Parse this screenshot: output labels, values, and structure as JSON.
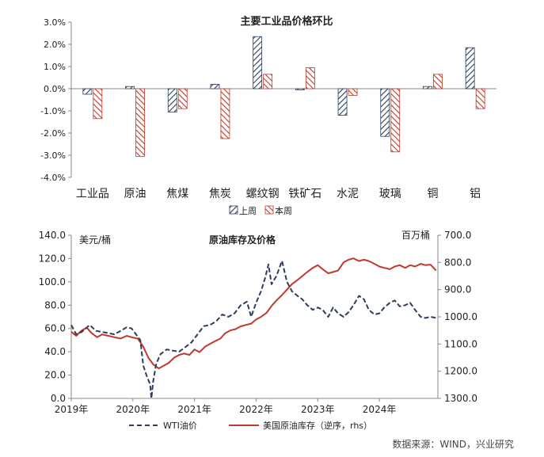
{
  "colors": {
    "last_week": "#2c3e5c",
    "this_week": "#c0392b",
    "wti": "#2c3e5c",
    "inventory": "#c0392b",
    "axis": "#888888"
  },
  "source": "数据来源：WIND，兴业研究",
  "chart_data": [
    {
      "type": "bar",
      "title": "主要工业品价格环比",
      "categories": [
        "工业品",
        "原油",
        "焦煤",
        "焦炭",
        "螺纹钢",
        "铁矿石",
        "水泥",
        "玻璃",
        "铜",
        "铝"
      ],
      "series": [
        {
          "name": "上周",
          "values": [
            -0.25,
            0.1,
            -1.05,
            0.2,
            2.35,
            -0.05,
            -1.2,
            -2.15,
            0.1,
            1.85
          ]
        },
        {
          "name": "本周",
          "values": [
            -1.35,
            -3.05,
            -0.9,
            -2.25,
            0.65,
            0.95,
            -0.3,
            -2.85,
            0.65,
            -0.9
          ]
        }
      ],
      "ylim": [
        -4.0,
        3.0
      ],
      "yticks": [
        "3.0%",
        "2.0%",
        "1.0%",
        "0.0%",
        "-1.0%",
        "-2.0%",
        "-3.0%",
        "-4.0%"
      ],
      "legend_position": "bottom",
      "grid": false
    },
    {
      "type": "line",
      "title": "原油库存及价格",
      "ylabel_left": "美元/桶",
      "ylabel_right": "百万桶",
      "xticks": [
        "2019年",
        "2020年",
        "2021年",
        "2022年",
        "2023年",
        "2024年"
      ],
      "yticks_left": [
        "140.0",
        "120.0",
        "100.0",
        "80.0",
        "60.0",
        "40.0",
        "20.0",
        "0.0"
      ],
      "yticks_right": [
        "700.0",
        "800.0",
        "900.0",
        "1000.0",
        "1100.0",
        "1200.0",
        "1300.0"
      ],
      "ylim_left": [
        0,
        140
      ],
      "ylim_right_reversed": [
        700,
        1300
      ],
      "xlim": [
        2019.0,
        2024.95
      ],
      "legend_position": "bottom",
      "grid": false,
      "series": [
        {
          "name": "WTI油价",
          "axis": "left",
          "style": "dashed",
          "points": [
            [
              2019.0,
              63
            ],
            [
              2019.08,
              55
            ],
            [
              2019.17,
              57
            ],
            [
              2019.3,
              63
            ],
            [
              2019.4,
              58
            ],
            [
              2019.5,
              57
            ],
            [
              2019.6,
              56
            ],
            [
              2019.7,
              55
            ],
            [
              2019.8,
              58
            ],
            [
              2019.9,
              61
            ],
            [
              2019.98,
              60
            ],
            [
              2020.05,
              55
            ],
            [
              2020.12,
              50
            ],
            [
              2020.17,
              28
            ],
            [
              2020.22,
              20
            ],
            [
              2020.28,
              12
            ],
            [
              2020.3,
              0
            ],
            [
              2020.33,
              15
            ],
            [
              2020.38,
              30
            ],
            [
              2020.45,
              38
            ],
            [
              2020.55,
              42
            ],
            [
              2020.65,
              41
            ],
            [
              2020.75,
              40
            ],
            [
              2020.85,
              44
            ],
            [
              2020.95,
              48
            ],
            [
              2021.05,
              55
            ],
            [
              2021.15,
              62
            ],
            [
              2021.25,
              63
            ],
            [
              2021.35,
              66
            ],
            [
              2021.45,
              72
            ],
            [
              2021.55,
              70
            ],
            [
              2021.65,
              73
            ],
            [
              2021.75,
              80
            ],
            [
              2021.85,
              83
            ],
            [
              2021.92,
              70
            ],
            [
              2022.0,
              82
            ],
            [
              2022.08,
              92
            ],
            [
              2022.15,
              104
            ],
            [
              2022.2,
              115
            ],
            [
              2022.25,
              98
            ],
            [
              2022.33,
              105
            ],
            [
              2022.42,
              118
            ],
            [
              2022.5,
              100
            ],
            [
              2022.58,
              92
            ],
            [
              2022.67,
              88
            ],
            [
              2022.75,
              85
            ],
            [
              2022.83,
              80
            ],
            [
              2022.92,
              76
            ],
            [
              2023.0,
              78
            ],
            [
              2023.08,
              76
            ],
            [
              2023.17,
              70
            ],
            [
              2023.25,
              78
            ],
            [
              2023.33,
              73
            ],
            [
              2023.42,
              70
            ],
            [
              2023.5,
              74
            ],
            [
              2023.58,
              80
            ],
            [
              2023.67,
              88
            ],
            [
              2023.75,
              85
            ],
            [
              2023.83,
              76
            ],
            [
              2023.92,
              72
            ],
            [
              2024.0,
              73
            ],
            [
              2024.08,
              78
            ],
            [
              2024.17,
              82
            ],
            [
              2024.25,
              84
            ],
            [
              2024.33,
              79
            ],
            [
              2024.42,
              80
            ],
            [
              2024.5,
              82
            ],
            [
              2024.58,
              76
            ],
            [
              2024.67,
              70
            ],
            [
              2024.75,
              69
            ],
            [
              2024.83,
              70
            ],
            [
              2024.92,
              69
            ]
          ]
        },
        {
          "name": "美国原油库存（逆序，rhs）",
          "axis": "right",
          "style": "solid",
          "points": [
            [
              2019.0,
              1055
            ],
            [
              2019.08,
              1070
            ],
            [
              2019.17,
              1050
            ],
            [
              2019.25,
              1040
            ],
            [
              2019.33,
              1060
            ],
            [
              2019.42,
              1075
            ],
            [
              2019.5,
              1065
            ],
            [
              2019.6,
              1070
            ],
            [
              2019.7,
              1075
            ],
            [
              2019.8,
              1080
            ],
            [
              2019.9,
              1070
            ],
            [
              2019.98,
              1075
            ],
            [
              2020.08,
              1080
            ],
            [
              2020.17,
              1110
            ],
            [
              2020.25,
              1150
            ],
            [
              2020.33,
              1175
            ],
            [
              2020.42,
              1190
            ],
            [
              2020.5,
              1180
            ],
            [
              2020.58,
              1170
            ],
            [
              2020.67,
              1150
            ],
            [
              2020.75,
              1140
            ],
            [
              2020.83,
              1135
            ],
            [
              2020.92,
              1140
            ],
            [
              2021.0,
              1120
            ],
            [
              2021.08,
              1130
            ],
            [
              2021.17,
              1110
            ],
            [
              2021.25,
              1100
            ],
            [
              2021.33,
              1090
            ],
            [
              2021.42,
              1080
            ],
            [
              2021.5,
              1060
            ],
            [
              2021.58,
              1050
            ],
            [
              2021.67,
              1045
            ],
            [
              2021.75,
              1035
            ],
            [
              2021.83,
              1030
            ],
            [
              2021.92,
              1025
            ],
            [
              2022.0,
              1010
            ],
            [
              2022.08,
              1000
            ],
            [
              2022.17,
              985
            ],
            [
              2022.25,
              960
            ],
            [
              2022.33,
              940
            ],
            [
              2022.42,
              920
            ],
            [
              2022.5,
              900
            ],
            [
              2022.58,
              880
            ],
            [
              2022.67,
              865
            ],
            [
              2022.75,
              850
            ],
            [
              2022.83,
              835
            ],
            [
              2022.92,
              820
            ],
            [
              2023.0,
              810
            ],
            [
              2023.08,
              825
            ],
            [
              2023.17,
              840
            ],
            [
              2023.25,
              835
            ],
            [
              2023.33,
              830
            ],
            [
              2023.42,
              800
            ],
            [
              2023.5,
              790
            ],
            [
              2023.58,
              785
            ],
            [
              2023.67,
              795
            ],
            [
              2023.75,
              790
            ],
            [
              2023.83,
              795
            ],
            [
              2023.92,
              805
            ],
            [
              2024.0,
              815
            ],
            [
              2024.08,
              820
            ],
            [
              2024.17,
              825
            ],
            [
              2024.25,
              815
            ],
            [
              2024.33,
              810
            ],
            [
              2024.42,
              820
            ],
            [
              2024.5,
              810
            ],
            [
              2024.58,
              815
            ],
            [
              2024.67,
              805
            ],
            [
              2024.75,
              810
            ],
            [
              2024.83,
              808
            ],
            [
              2024.92,
              830
            ]
          ]
        }
      ]
    }
  ]
}
